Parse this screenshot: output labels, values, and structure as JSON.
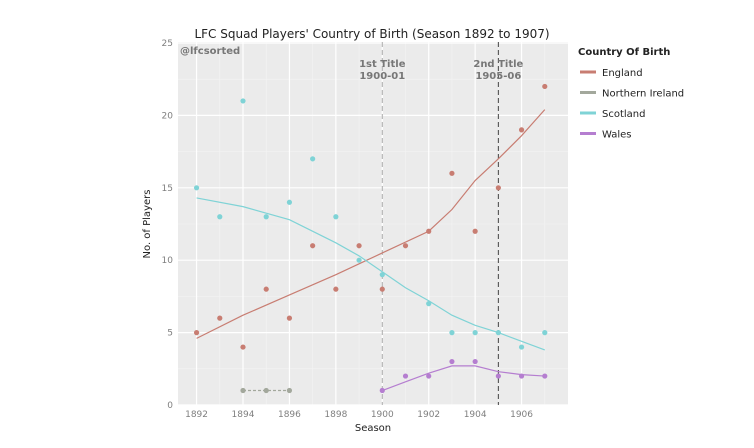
{
  "chart_data": {
    "type": "scatter",
    "title": "LFC Squad Players' Country of Birth (Season 1892 to 1907)",
    "xlabel": "Season",
    "ylabel": "No. of Players",
    "xlim": [
      1891.2,
      1908
    ],
    "ylim": [
      0,
      25
    ],
    "xticks": [
      1892,
      1894,
      1896,
      1898,
      1900,
      1902,
      1904,
      1906
    ],
    "yticks": [
      0,
      5,
      10,
      15,
      20,
      25
    ],
    "grid": true,
    "watermark": "@lfcsorted",
    "legend": {
      "title": "Country Of Birth",
      "placement": "right"
    },
    "annotations": [
      {
        "x": 1900,
        "line1": "1st Title",
        "line2": "1900-01",
        "color": "#aaaaaa"
      },
      {
        "x": 1905,
        "line1": "2nd Title",
        "line2": "1905-06",
        "color": "#444444"
      }
    ],
    "series": [
      {
        "name": "England",
        "color": "#c87d72",
        "x": [
          1892,
          1893,
          1894,
          1895,
          1896,
          1897,
          1898,
          1899,
          1900,
          1901,
          1902,
          1903,
          1904,
          1905,
          1906,
          1907
        ],
        "y": [
          5,
          6,
          4,
          8,
          6,
          11,
          8,
          11,
          8,
          11,
          12,
          16,
          12,
          15,
          19,
          22
        ],
        "trend": {
          "x": [
            1892,
            1894,
            1896,
            1898,
            1900,
            1902,
            1903,
            1904,
            1905,
            1906,
            1907
          ],
          "y": [
            4.6,
            6.2,
            7.6,
            9,
            10.5,
            12,
            13.5,
            15.5,
            17,
            18.6,
            20.4
          ]
        }
      },
      {
        "name": "Northern Ireland",
        "color": "#a3a89c",
        "x": [
          1894,
          1895,
          1896
        ],
        "y": [
          1,
          1,
          1
        ],
        "trend": {
          "x": [
            1894,
            1896
          ],
          "y": [
            1,
            1
          ]
        }
      },
      {
        "name": "Scotland",
        "color": "#7fd3d6",
        "x": [
          1892,
          1893,
          1894,
          1895,
          1896,
          1897,
          1898,
          1899,
          1900,
          1902,
          1903,
          1904,
          1905,
          1906,
          1907
        ],
        "y": [
          15,
          13,
          21,
          13,
          14,
          17,
          13,
          10,
          9,
          7,
          5,
          5,
          5,
          4,
          5
        ],
        "trend": {
          "x": [
            1892,
            1894,
            1896,
            1898,
            1899,
            1900,
            1901,
            1902,
            1903,
            1904,
            1905,
            1906,
            1907
          ],
          "y": [
            14.3,
            13.7,
            12.8,
            11.2,
            10.3,
            9.2,
            8.1,
            7.2,
            6.2,
            5.5,
            5,
            4.4,
            3.8
          ]
        }
      },
      {
        "name": "Wales",
        "color": "#b57ed0",
        "x": [
          1900,
          1901,
          1902,
          1903,
          1904,
          1905,
          1906,
          1907
        ],
        "y": [
          1,
          2,
          2,
          3,
          3,
          2,
          2,
          2
        ],
        "trend": {
          "x": [
            1900,
            1901,
            1902,
            1903,
            1904,
            1905,
            1906,
            1907
          ],
          "y": [
            1,
            1.6,
            2.2,
            2.7,
            2.7,
            2.3,
            2.1,
            2.0
          ]
        }
      }
    ]
  }
}
